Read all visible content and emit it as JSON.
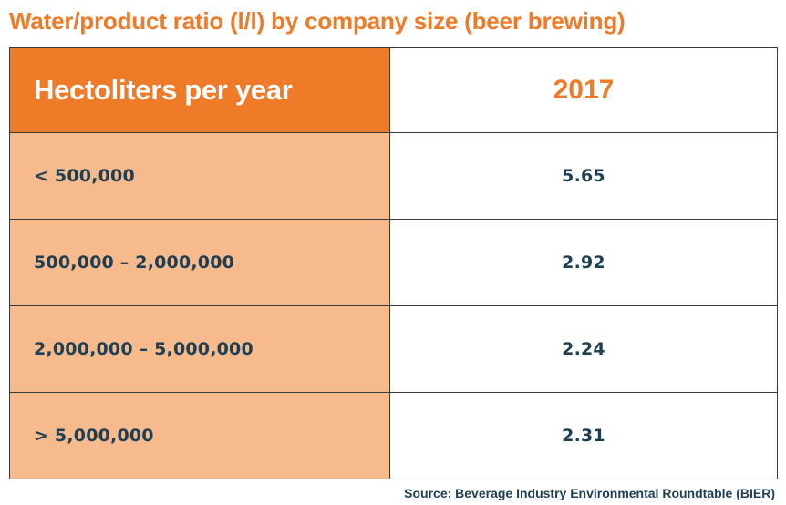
{
  "chart_data": {
    "type": "table",
    "title": "Water/product ratio (l/l) by company size (beer brewing)",
    "columns": [
      "Hectoliters per year",
      "2017"
    ],
    "rows": [
      {
        "label": "< 500,000",
        "value": "5.65"
      },
      {
        "label": "500,000 – 2,000,000",
        "value": "2.92"
      },
      {
        "label": "2,000,000 – 5,000,000",
        "value": "2.24"
      },
      {
        "label": "> 5,000,000",
        "value": "2.31"
      }
    ],
    "source": "Source: Beverage Industry Environmental Roundtable (BIER)"
  },
  "colors": {
    "accent": "#ef7a28",
    "row_fill": "#f6ba8c",
    "text_dark": "#1e3f52"
  }
}
